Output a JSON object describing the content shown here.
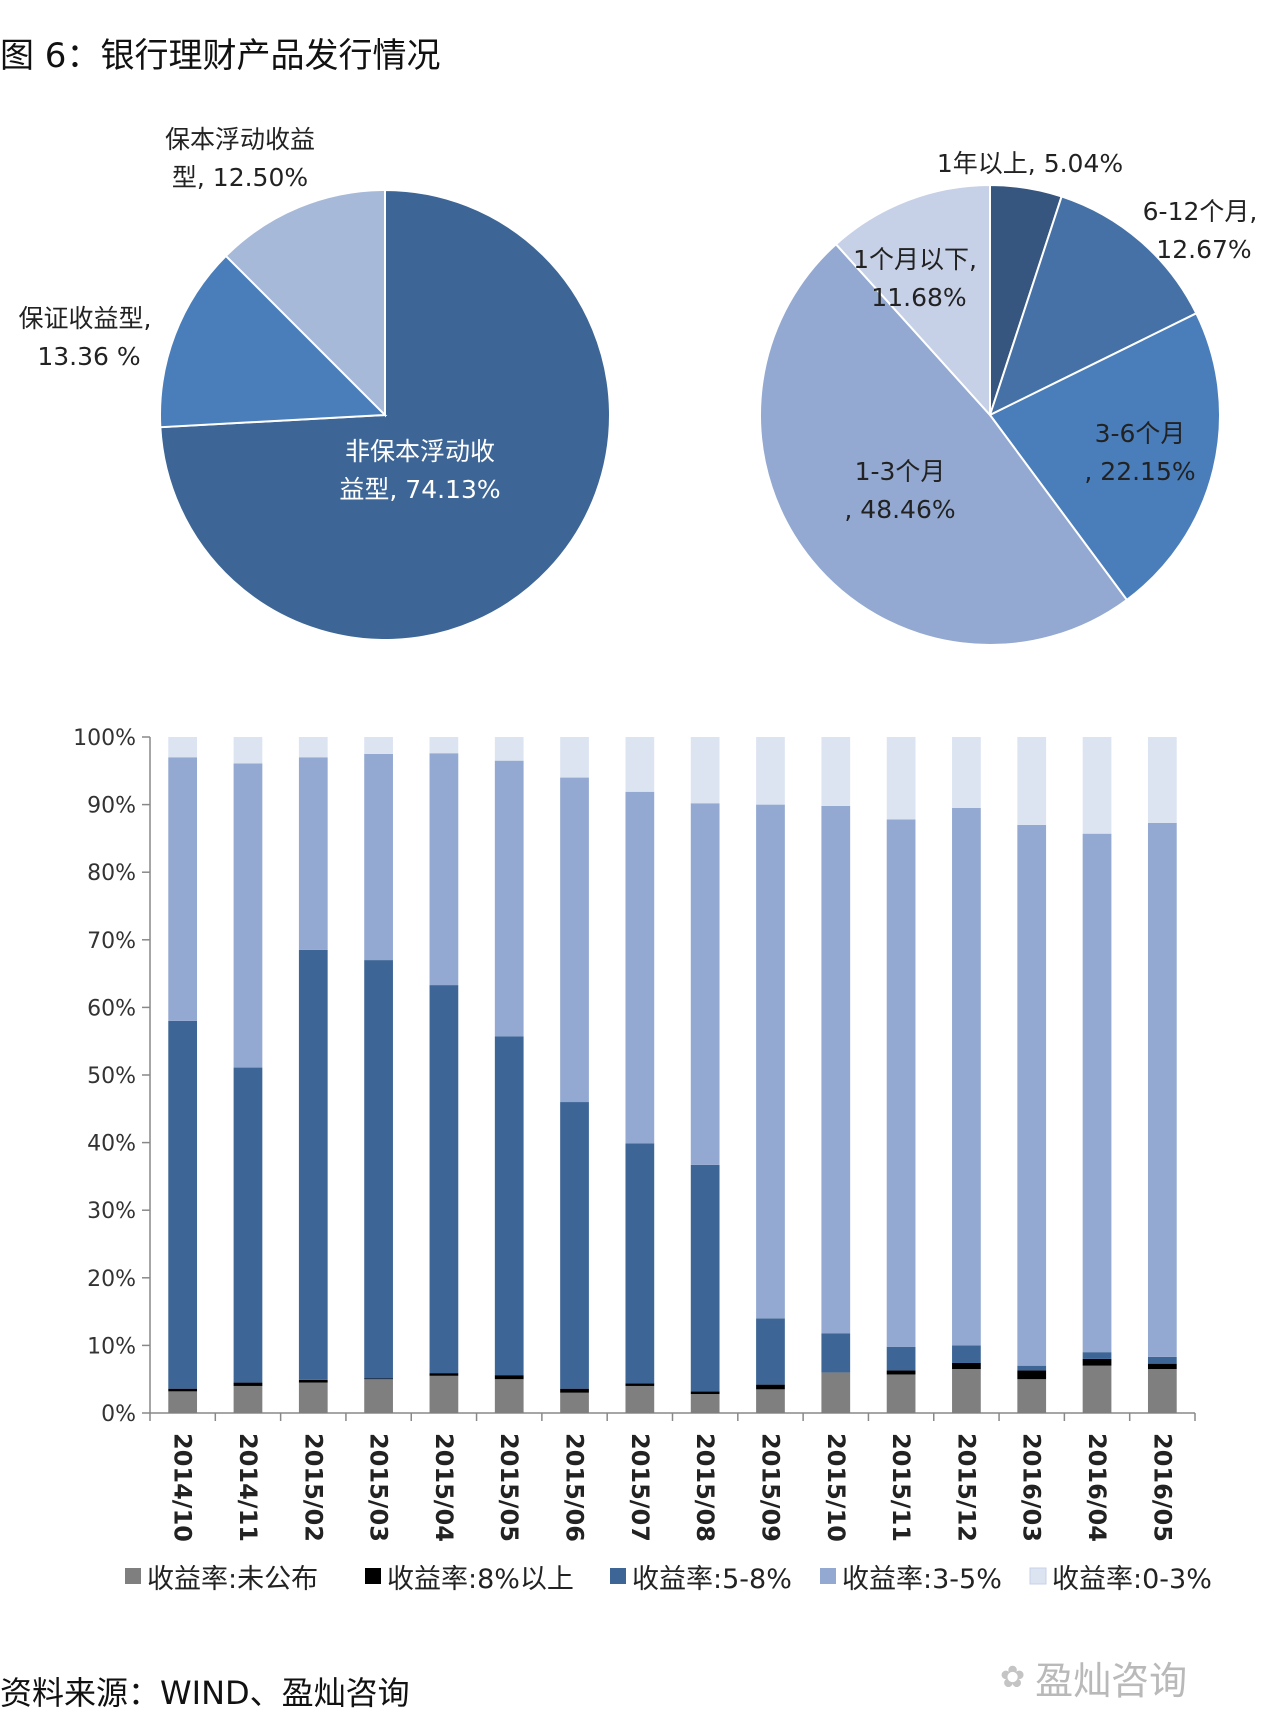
{
  "figure": {
    "title": "图 6：银行理财产品发行情况",
    "source": "资料来源：WIND、盈灿咨询",
    "watermark": "盈灿咨询",
    "watermark_icon": "wechat-icon"
  },
  "chart_data": [
    {
      "type": "pie",
      "title": "",
      "slices": [
        {
          "label": "非保本浮动收益型, 74.13%",
          "value": 74.13,
          "color": "#3d6696"
        },
        {
          "label": "保证收益型, 13.36 %",
          "value": 13.36,
          "color": "#4a7ebb"
        },
        {
          "label": "保本浮动收益型, 12.50%",
          "value": 12.5,
          "color": "#a7b9d9"
        }
      ]
    },
    {
      "type": "pie",
      "title": "",
      "slices": [
        {
          "label": "1年以上, 5.04%",
          "value": 5.04,
          "color": "#36557f"
        },
        {
          "label": "6-12个月, 12.67%",
          "value": 12.67,
          "color": "#4571a6"
        },
        {
          "label": "3-6个月, 22.15%",
          "value": 22.15,
          "color": "#4a7ebb"
        },
        {
          "label": "1-3个月, 48.46%",
          "value": 48.46,
          "color": "#93a9d1"
        },
        {
          "label": "1个月以下, 11.68%",
          "value": 11.68,
          "color": "#c6d0e6"
        }
      ]
    },
    {
      "type": "bar",
      "stacked": true,
      "title": "",
      "categories": [
        "2014/10",
        "2014/11",
        "2015/02",
        "2015/03",
        "2015/04",
        "2015/05",
        "2015/06",
        "2015/07",
        "2015/08",
        "2015/09",
        "2015/10",
        "2015/11",
        "2015/12",
        "2016/03",
        "2016/04",
        "2016/05"
      ],
      "ylim": [
        0,
        100
      ],
      "yticks": [
        "0%",
        "10%",
        "20%",
        "30%",
        "40%",
        "50%",
        "60%",
        "70%",
        "80%",
        "90%",
        "100%"
      ],
      "legend_position": "bottom",
      "series": [
        {
          "name": "收益率:未公布",
          "color": "#7f7f7f",
          "values": [
            3.2,
            4.0,
            4.5,
            5.0,
            5.5,
            5.0,
            3.0,
            4.0,
            2.8,
            3.5,
            6.0,
            5.7,
            6.5,
            5.0,
            7.0,
            6.5
          ]
        },
        {
          "name": "收益率:8%以上",
          "color": "#000000",
          "values": [
            0.4,
            0.5,
            0.4,
            0.1,
            0.4,
            0.6,
            0.6,
            0.4,
            0.4,
            0.7,
            0.0,
            0.6,
            0.9,
            1.3,
            1.0,
            0.8
          ]
        },
        {
          "name": "收益率:5-8%",
          "color": "#3d6696",
          "values": [
            54.4,
            46.6,
            63.6,
            61.9,
            57.4,
            50.1,
            42.4,
            35.5,
            33.5,
            9.8,
            5.8,
            3.5,
            2.6,
            0.7,
            1.0,
            1.0
          ]
        },
        {
          "name": "收益率:3-5%",
          "color": "#93a9d1",
          "values": [
            39.0,
            45.0,
            28.5,
            30.5,
            34.3,
            40.8,
            48.0,
            52.0,
            53.5,
            76.0,
            78.0,
            78.0,
            79.5,
            80.0,
            76.7,
            79.0
          ]
        },
        {
          "name": "收益率:0-3%",
          "color": "#dce4f2",
          "values": [
            3.0,
            3.9,
            3.0,
            2.5,
            2.4,
            3.5,
            6.0,
            8.1,
            9.8,
            10.0,
            10.2,
            12.2,
            10.5,
            13.0,
            14.3,
            12.7
          ]
        }
      ]
    }
  ]
}
